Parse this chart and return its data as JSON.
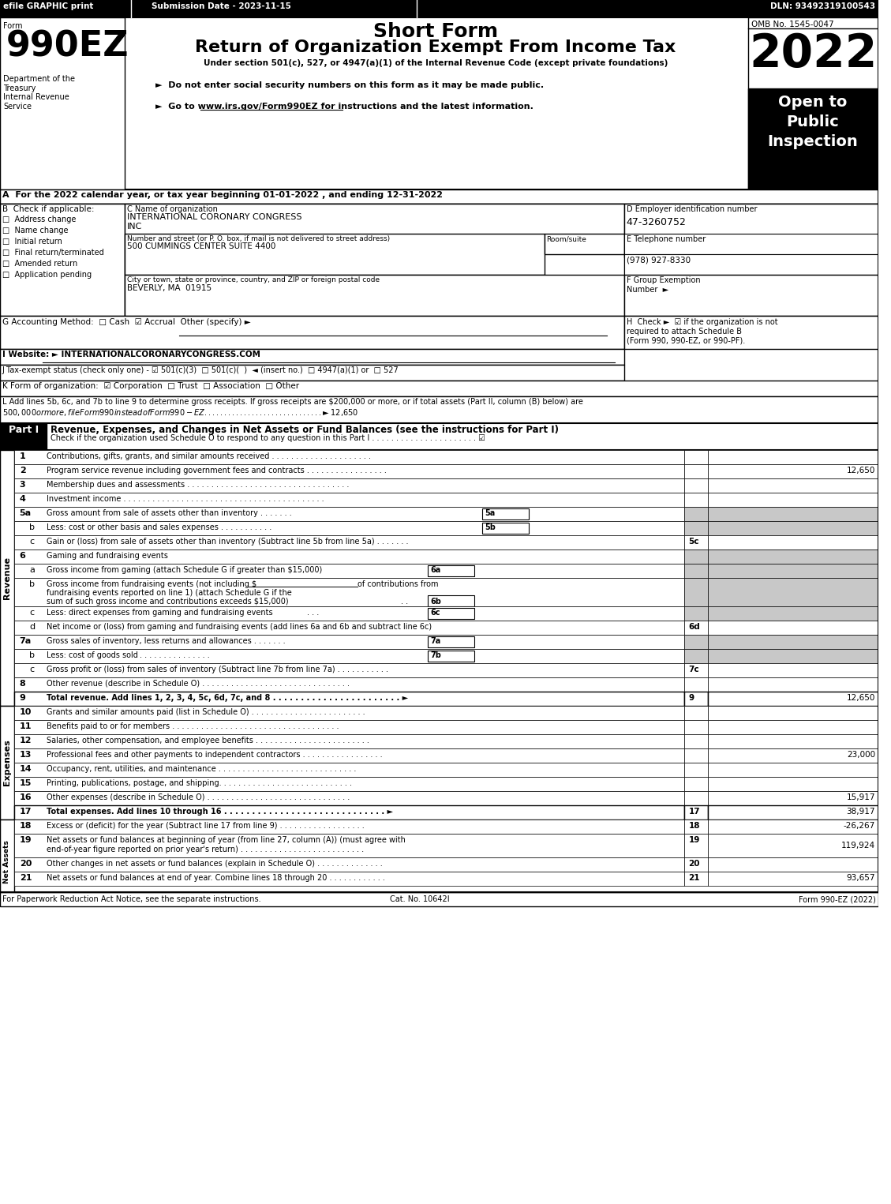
{
  "title": "Short Form",
  "subtitle": "Return of Organization Exempt From Income Tax",
  "year": "2022",
  "omb": "OMB No. 1545-0047",
  "form_number": "990EZ",
  "efile_text": "efile GRAPHIC print",
  "submission_date": "Submission Date - 2023-11-15",
  "dln": "DLN: 93492319100543",
  "under_section": "Under section 501(c), 527, or 4947(a)(1) of the Internal Revenue Code (except private foundations)",
  "bullet1": "►  Do not enter social security numbers on this form as it may be made public.",
  "bullet2": "►  Go to www.irs.gov/Form990EZ for instructions and the latest information.",
  "open_to_public": "Open to\nPublic\nInspection",
  "dept_text": "Department of the\nTreasury\nInternal Revenue\nService",
  "form_label": "Form",
  "bg_color": "#ffffff",
  "header_bg": "#000000",
  "header_text_color": "#ffffff",
  "dark_bg": "#000000",
  "gray_bg": "#c0c0c0",
  "light_gray": "#d3d3d3"
}
